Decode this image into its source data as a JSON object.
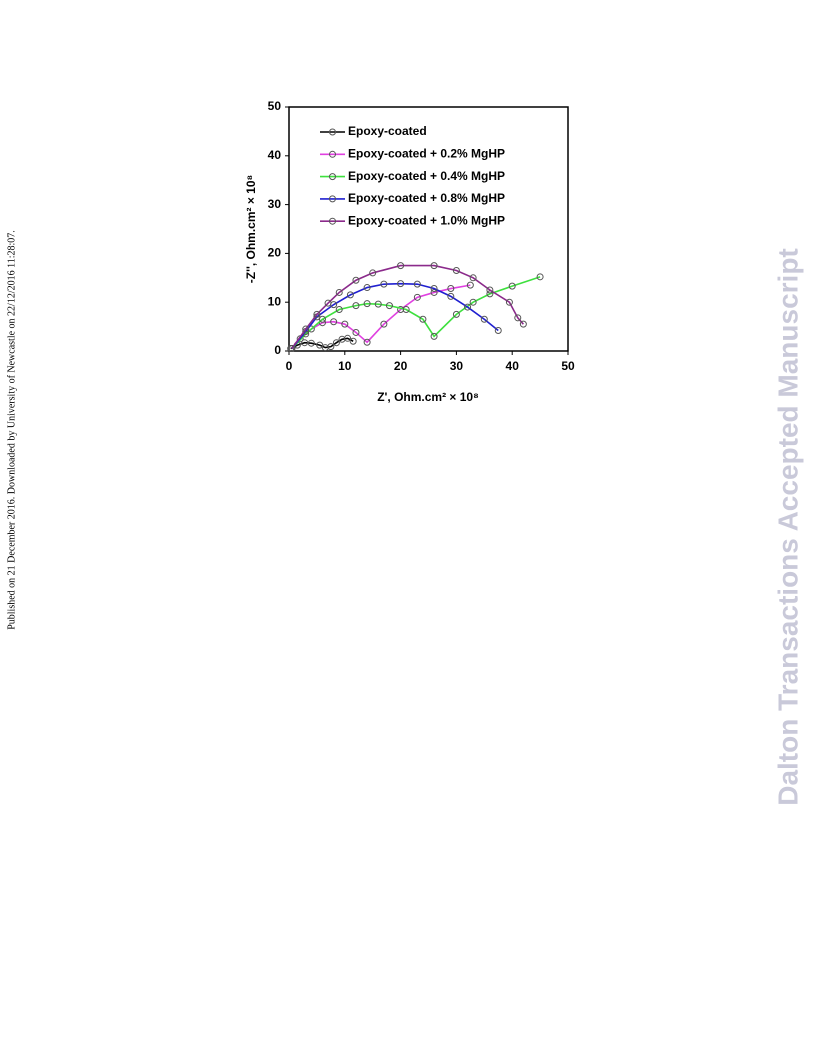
{
  "side_note": "Published on 21 December 2016. Downloaded by University of Newcastle on 22/12/2016 11:28:07.",
  "watermark": "Dalton Transactions Accepted Manuscript",
  "chart_data": {
    "type": "line",
    "x_label": "Z', Ohm.cm² × 10⁸",
    "y_label": "-Z'', Ohm.cm² × 10⁸",
    "xlim": [
      0,
      50
    ],
    "ylim": [
      0,
      50
    ],
    "xticks": [
      0,
      10,
      20,
      30,
      40,
      50
    ],
    "yticks": [
      0,
      10,
      20,
      30,
      40,
      50
    ],
    "legend": "upper-left",
    "series": [
      {
        "name": "Epoxy-coated",
        "color": "#000000",
        "x": [
          0.3,
          1.5,
          2.8,
          4,
          5.5,
          6.5,
          7.5,
          8.5,
          9.5,
          10.5,
          11.5
        ],
        "values": [
          0.5,
          1.2,
          1.7,
          1.6,
          1.2,
          0.7,
          0.9,
          1.7,
          2.4,
          2.6,
          2
        ]
      },
      {
        "name": "Epoxy-coated + 0.2% MgHP",
        "color": "#e040e0",
        "x": [
          0.5,
          2,
          4,
          6,
          8,
          10,
          12,
          14,
          17,
          20,
          23,
          26,
          29,
          32.5
        ],
        "values": [
          0.5,
          2.5,
          4.5,
          5.8,
          6,
          5.5,
          3.8,
          1.8,
          5.5,
          8.5,
          11,
          12,
          12.8,
          13.5
        ]
      },
      {
        "name": "Epoxy-coated + 0.4% MgHP",
        "color": "#3ee03e",
        "x": [
          0.5,
          3,
          6,
          9,
          12,
          14,
          16,
          18,
          21,
          24,
          26,
          30,
          33,
          36,
          40,
          45
        ],
        "values": [
          0.5,
          3.5,
          6.5,
          8.5,
          9.3,
          9.7,
          9.6,
          9.3,
          8.5,
          6.5,
          3,
          7.5,
          10,
          11.7,
          13.3,
          15.2
        ]
      },
      {
        "name": "Epoxy-coated + 0.8% MgHP",
        "color": "#2020d0",
        "x": [
          0.5,
          3,
          5,
          8,
          11,
          14,
          17,
          20,
          23,
          26,
          29,
          32,
          35,
          37.5
        ],
        "values": [
          0.5,
          4,
          7,
          9.5,
          11.5,
          13,
          13.7,
          13.8,
          13.7,
          12.8,
          11.2,
          9,
          6.5,
          4.2
        ]
      },
      {
        "name": "Epoxy-coated + 1.0% MgHP",
        "color": "#8b2a8b",
        "x": [
          0.5,
          3,
          5,
          7,
          9,
          12,
          15,
          20,
          26,
          30,
          33,
          36,
          39.5,
          41,
          42
        ],
        "values": [
          0.5,
          4.5,
          7.5,
          9.8,
          12,
          14.5,
          16,
          17.5,
          17.5,
          16.5,
          15,
          12.5,
          10,
          6.8,
          5.5
        ]
      }
    ]
  }
}
